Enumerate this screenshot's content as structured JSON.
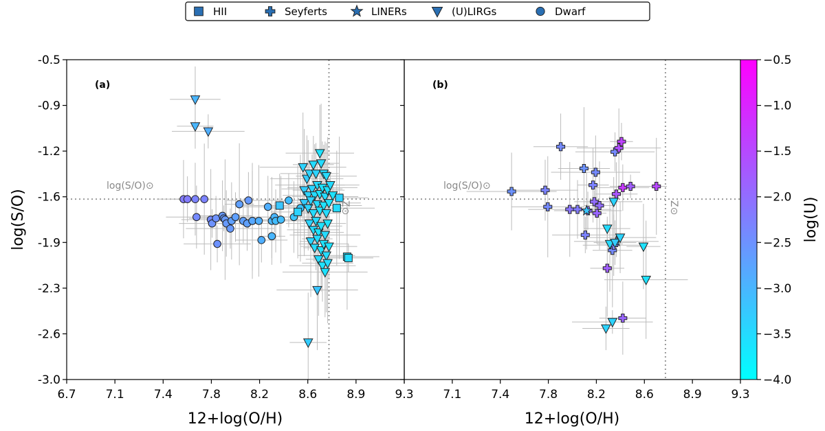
{
  "colors": {
    "frame": "#000000",
    "errorbar": "#bbbbbb",
    "refline": "#999999",
    "marker_edge": "#222222",
    "legend_marker": "#2a6fb3",
    "cmap_low": "#00ffff",
    "cmap_high": "#ff00ff"
  },
  "legend": [
    {
      "label": "HII",
      "marker": "square"
    },
    {
      "label": "Seyferts",
      "marker": "plus"
    },
    {
      "label": "LINERs",
      "marker": "star"
    },
    {
      "label": "(U)LIRGs",
      "marker": "triangle"
    },
    {
      "label": "Dwarf",
      "marker": "circle"
    }
  ],
  "chart_data": {
    "type": "scatter",
    "ylabel": "log(S/O)",
    "xlabel": "12+log(O/H)",
    "ylim": [
      -3.0,
      -0.5
    ],
    "xlim": [
      6.7,
      9.3
    ],
    "ytick_labels": [
      "-0.5",
      "-0.9",
      "-1.2",
      "-1.6",
      "-1.9",
      "-2.3",
      "-2.6",
      "-3.0"
    ],
    "xtick_labels_a": [
      "6.7",
      "7.1",
      "7.4",
      "7.8",
      "8.2",
      "8.6",
      "8.9",
      "9.3"
    ],
    "xtick_labels_b": [
      "7.1",
      "7.4",
      "7.8",
      "8.2",
      "8.6",
      "8.9",
      "9.3"
    ],
    "reference": {
      "solar_so": -1.59,
      "solar_oh": 8.72,
      "so_label": "log(S/O)⊙",
      "oh_label": "Z⊙"
    },
    "colorbar": {
      "label": "log(U)",
      "range": [
        -4.0,
        -0.5
      ],
      "tick_labels": [
        "−0.5",
        "−1.0",
        "−1.5",
        "−2.0",
        "−2.5",
        "−3.0",
        "−3.5",
        "−4.0"
      ]
    },
    "panels": [
      {
        "label": "(a)",
        "xlim": [
          6.7,
          9.3
        ],
        "series": [
          {
            "name": "Dwarf",
            "marker": "circle",
            "points": [
              [
                7.6,
                -1.59,
                -2.2
              ],
              [
                7.63,
                -1.59,
                -2.2
              ],
              [
                7.69,
                -1.59,
                -2.3
              ],
              [
                7.76,
                -1.59,
                -2.3
              ],
              [
                7.7,
                -1.73,
                -2.4
              ],
              [
                7.81,
                -1.75,
                -2.4
              ],
              [
                7.82,
                -1.78,
                -2.5
              ],
              [
                7.85,
                -1.74,
                -2.5
              ],
              [
                7.86,
                -1.94,
                -2.5
              ],
              [
                7.9,
                -1.72,
                -2.6
              ],
              [
                7.91,
                -1.74,
                -2.6
              ],
              [
                7.92,
                -1.75,
                -2.6
              ],
              [
                7.93,
                -1.78,
                -2.6
              ],
              [
                7.96,
                -1.82,
                -2.6
              ],
              [
                7.97,
                -1.76,
                -2.7
              ],
              [
                8.0,
                -1.73,
                -2.7
              ],
              [
                8.03,
                -1.63,
                -2.7
              ],
              [
                8.06,
                -1.76,
                -2.7
              ],
              [
                8.09,
                -1.78,
                -2.7
              ],
              [
                8.13,
                -1.76,
                -2.8
              ],
              [
                8.1,
                -1.6,
                -2.6
              ],
              [
                8.13,
                -1.76,
                -2.8
              ],
              [
                8.18,
                -1.76,
                -2.9
              ],
              [
                8.2,
                -1.91,
                -2.9
              ],
              [
                8.25,
                -1.65,
                -2.9
              ],
              [
                8.28,
                -1.76,
                -3.0
              ],
              [
                8.28,
                -1.88,
                -3.0
              ],
              [
                8.3,
                -1.73,
                -3.0
              ],
              [
                8.31,
                -1.76,
                -3.1
              ],
              [
                8.35,
                -1.75,
                -3.1
              ],
              [
                8.41,
                -1.6,
                -3.1
              ],
              [
                8.45,
                -1.73,
                -3.2
              ],
              [
                8.5,
                -1.66,
                -3.2
              ]
            ]
          },
          {
            "name": "(U)LIRGs",
            "marker": "triangle",
            "points": [
              [
                7.69,
                -0.81,
                -3.0
              ],
              [
                7.69,
                -1.02,
                -3.0
              ],
              [
                7.79,
                -1.06,
                -2.9
              ],
              [
                8.56,
                -2.71,
                -3.3
              ],
              [
                8.63,
                -2.3,
                -3.2
              ],
              [
                8.52,
                -1.34,
                -3.4
              ],
              [
                8.55,
                -1.43,
                -3.3
              ],
              [
                8.57,
                -1.39,
                -3.4
              ],
              [
                8.6,
                -1.32,
                -3.5
              ],
              [
                8.62,
                -1.39,
                -3.4
              ],
              [
                8.65,
                -1.23,
                -3.6
              ],
              [
                8.66,
                -1.31,
                -3.5
              ],
              [
                8.68,
                -1.39,
                -3.5
              ],
              [
                8.7,
                -1.41,
                -3.5
              ],
              [
                8.53,
                -1.52,
                -3.3
              ],
              [
                8.56,
                -1.56,
                -3.4
              ],
              [
                8.59,
                -1.51,
                -3.4
              ],
              [
                8.61,
                -1.56,
                -3.5
              ],
              [
                8.63,
                -1.48,
                -3.5
              ],
              [
                8.65,
                -1.55,
                -3.6
              ],
              [
                8.67,
                -1.5,
                -3.6
              ],
              [
                8.69,
                -1.57,
                -3.5
              ],
              [
                8.71,
                -1.52,
                -3.6
              ],
              [
                8.73,
                -1.48,
                -3.5
              ],
              [
                8.75,
                -1.56,
                -3.6
              ],
              [
                8.53,
                -1.62,
                -3.3
              ],
              [
                8.56,
                -1.66,
                -3.4
              ],
              [
                8.58,
                -1.6,
                -3.4
              ],
              [
                8.6,
                -1.7,
                -3.5
              ],
              [
                8.63,
                -1.63,
                -3.5
              ],
              [
                8.65,
                -1.68,
                -3.6
              ],
              [
                8.68,
                -1.64,
                -3.6
              ],
              [
                8.7,
                -1.7,
                -3.5
              ],
              [
                8.72,
                -1.62,
                -3.6
              ],
              [
                8.57,
                -1.78,
                -3.4
              ],
              [
                8.6,
                -1.83,
                -3.5
              ],
              [
                8.62,
                -1.76,
                -3.5
              ],
              [
                8.64,
                -1.85,
                -3.6
              ],
              [
                8.66,
                -1.8,
                -3.6
              ],
              [
                8.69,
                -1.87,
                -3.5
              ],
              [
                8.71,
                -1.78,
                -3.6
              ],
              [
                8.58,
                -1.92,
                -3.4
              ],
              [
                8.61,
                -1.97,
                -3.5
              ],
              [
                8.63,
                -1.9,
                -3.5
              ],
              [
                8.66,
                -1.99,
                -3.6
              ],
              [
                8.68,
                -1.94,
                -3.6
              ],
              [
                8.7,
                -2.03,
                -3.5
              ],
              [
                8.72,
                -1.96,
                -3.6
              ],
              [
                8.64,
                -2.06,
                -3.5
              ],
              [
                8.67,
                -2.11,
                -3.6
              ],
              [
                8.69,
                -2.16,
                -3.6
              ],
              [
                8.71,
                -2.09,
                -3.5
              ]
            ]
          },
          {
            "name": "HII",
            "marker": "square",
            "points": [
              [
                8.34,
                -1.64,
                -3.2
              ],
              [
                8.48,
                -1.69,
                -3.4
              ],
              [
                8.78,
                -1.66,
                -3.5
              ],
              [
                8.8,
                -1.58,
                -3.4
              ],
              [
                8.86,
                -2.04,
                -3.5
              ],
              [
                8.87,
                -2.05,
                -3.5
              ]
            ]
          }
        ]
      },
      {
        "label": "(b)",
        "xlim": [
          6.7,
          9.3
        ],
        "series": [
          {
            "name": "Seyferts",
            "marker": "plus",
            "points": [
              [
                7.53,
                -1.53,
                -2.5
              ],
              [
                7.79,
                -1.52,
                -2.3
              ],
              [
                7.81,
                -1.65,
                -2.4
              ],
              [
                7.91,
                -1.18,
                -2.4
              ],
              [
                7.98,
                -1.67,
                -2.1
              ],
              [
                8.04,
                -1.67,
                -2.2
              ],
              [
                8.09,
                -1.35,
                -2.5
              ],
              [
                8.1,
                -1.87,
                -2.3
              ],
              [
                8.12,
                -1.68,
                -2.1
              ],
              [
                8.16,
                -1.48,
                -2.3
              ],
              [
                8.17,
                -1.61,
                -2.0
              ],
              [
                8.18,
                -1.38,
                -2.4
              ],
              [
                8.19,
                -1.7,
                -1.9
              ],
              [
                8.21,
                -1.64,
                -2.0
              ],
              [
                8.27,
                -2.13,
                -1.8
              ],
              [
                8.31,
                -1.99,
                -2.4
              ],
              [
                8.32,
                -1.95,
                -2.3
              ],
              [
                8.33,
                -1.22,
                -2.4
              ],
              [
                8.34,
                -1.55,
                -1.7
              ],
              [
                8.36,
                -1.19,
                -1.6
              ],
              [
                8.38,
                -1.14,
                -1.4
              ],
              [
                8.39,
                -1.5,
                -1.3
              ],
              [
                8.39,
                -2.52,
                -1.9
              ],
              [
                8.45,
                -1.49,
                -1.8
              ],
              [
                8.65,
                -1.49,
                -1.5
              ]
            ]
          },
          {
            "name": "LINERs",
            "marker": "star",
            "points": [
              [
                8.11,
                -1.68,
                -3.2
              ],
              [
                8.34,
                -1.92,
                -2.9
              ]
            ]
          },
          {
            "name": "(U)LIRGs",
            "marker": "triangle",
            "points": [
              [
                8.26,
                -2.6,
                -3.4
              ],
              [
                8.27,
                -1.82,
                -3.5
              ],
              [
                8.29,
                -1.94,
                -3.5
              ],
              [
                8.31,
                -2.55,
                -3.4
              ],
              [
                8.32,
                -1.61,
                -3.4
              ],
              [
                8.33,
                -1.93,
                -3.3
              ],
              [
                8.37,
                -1.89,
                -3.4
              ],
              [
                8.55,
                -1.96,
                -3.6
              ],
              [
                8.57,
                -2.22,
                -3.6
              ]
            ]
          }
        ]
      }
    ]
  }
}
